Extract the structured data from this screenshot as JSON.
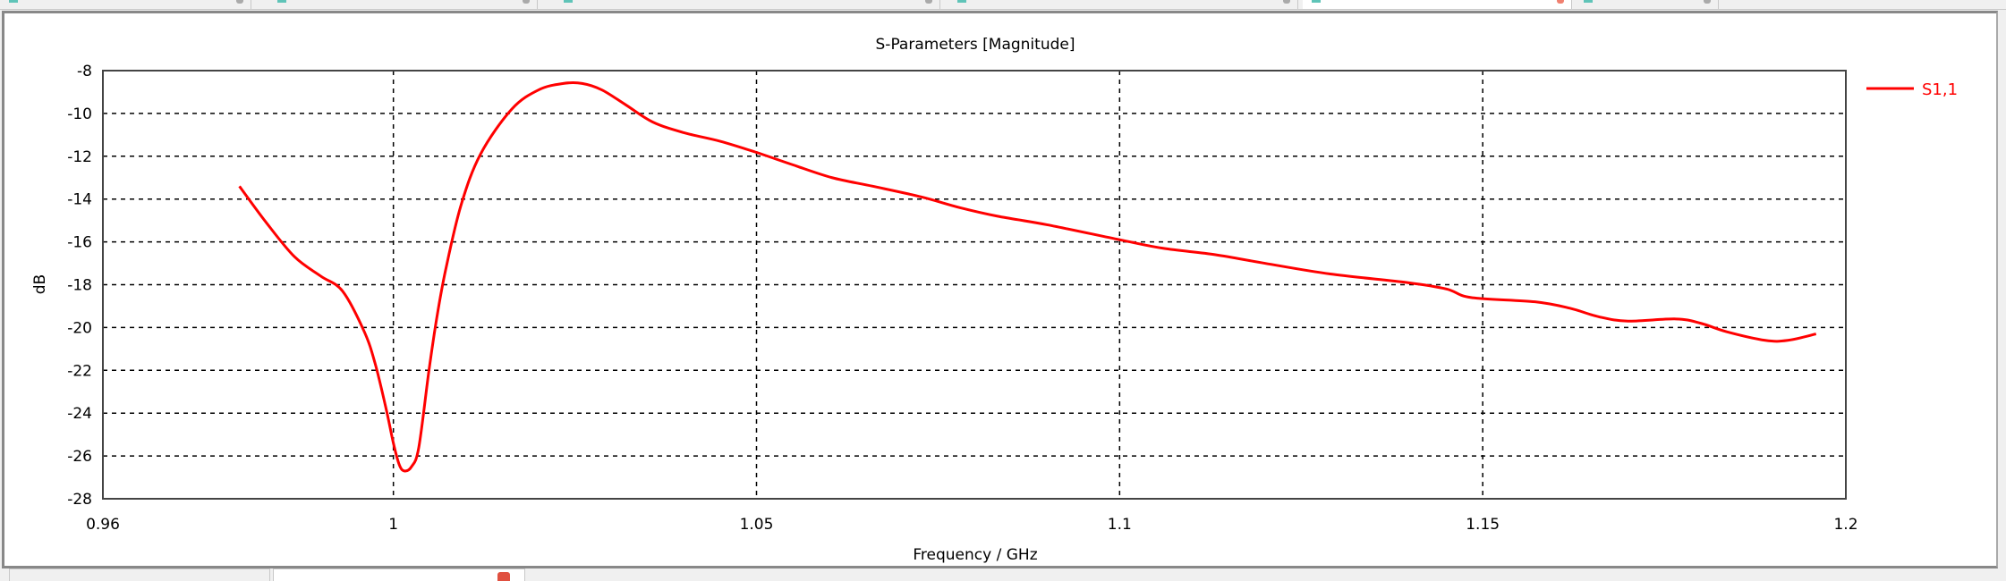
{
  "chart_data": {
    "type": "line",
    "title": "S-Parameters [Magnitude]",
    "xlabel": "Frequency / GHz",
    "ylabel": "dB",
    "xlim": [
      0.96,
      1.2
    ],
    "ylim": [
      -28,
      -8
    ],
    "xticks": [
      "0.96",
      "1",
      "1.05",
      "1.1",
      "1.15",
      "1.2"
    ],
    "xtick_values": [
      0.96,
      1.0,
      1.05,
      1.1,
      1.15,
      1.2
    ],
    "yticks": [
      "-8",
      "-10",
      "-12",
      "-14",
      "-16",
      "-18",
      "-20",
      "-22",
      "-24",
      "-26",
      "-28"
    ],
    "ytick_values": [
      -8,
      -10,
      -12,
      -14,
      -16,
      -18,
      -20,
      -22,
      -24,
      -26,
      -28
    ],
    "grid": true,
    "legend_position": "right",
    "series": [
      {
        "name": "S1,1",
        "color": "#ff0000",
        "x": [
          0.9788,
          0.9825,
          0.9864,
          0.99,
          0.993,
          0.996,
          0.9975,
          0.999,
          1.0,
          1.0008,
          1.0015,
          1.0025,
          1.0035,
          1.0049,
          1.006,
          1.0072,
          1.0093,
          1.012,
          1.0163,
          1.02,
          1.0234,
          1.026,
          1.0287,
          1.032,
          1.0357,
          1.04,
          1.045,
          1.0498,
          1.055,
          1.0604,
          1.066,
          1.0727,
          1.078,
          1.0832,
          1.09,
          1.1,
          1.106,
          1.1132,
          1.12,
          1.129,
          1.1396,
          1.145,
          1.1484,
          1.1572,
          1.162,
          1.166,
          1.17,
          1.1766,
          1.18,
          1.1836,
          1.1889,
          1.192,
          1.1959
        ],
        "y": [
          -13.4,
          -15.1,
          -16.7,
          -17.6,
          -18.3,
          -20.2,
          -21.7,
          -23.8,
          -25.4,
          -26.4,
          -26.7,
          -26.5,
          -25.6,
          -22.0,
          -19.5,
          -17.3,
          -14.3,
          -11.9,
          -9.8,
          -8.9,
          -8.6,
          -8.6,
          -8.9,
          -9.6,
          -10.4,
          -10.9,
          -11.3,
          -11.8,
          -12.4,
          -13.0,
          -13.4,
          -13.9,
          -14.4,
          -14.8,
          -15.2,
          -15.9,
          -16.3,
          -16.6,
          -17.0,
          -17.5,
          -17.9,
          -18.2,
          -18.6,
          -18.8,
          -19.1,
          -19.5,
          -19.7,
          -19.6,
          -19.8,
          -20.2,
          -20.6,
          -20.6,
          -20.3
        ]
      }
    ]
  }
}
